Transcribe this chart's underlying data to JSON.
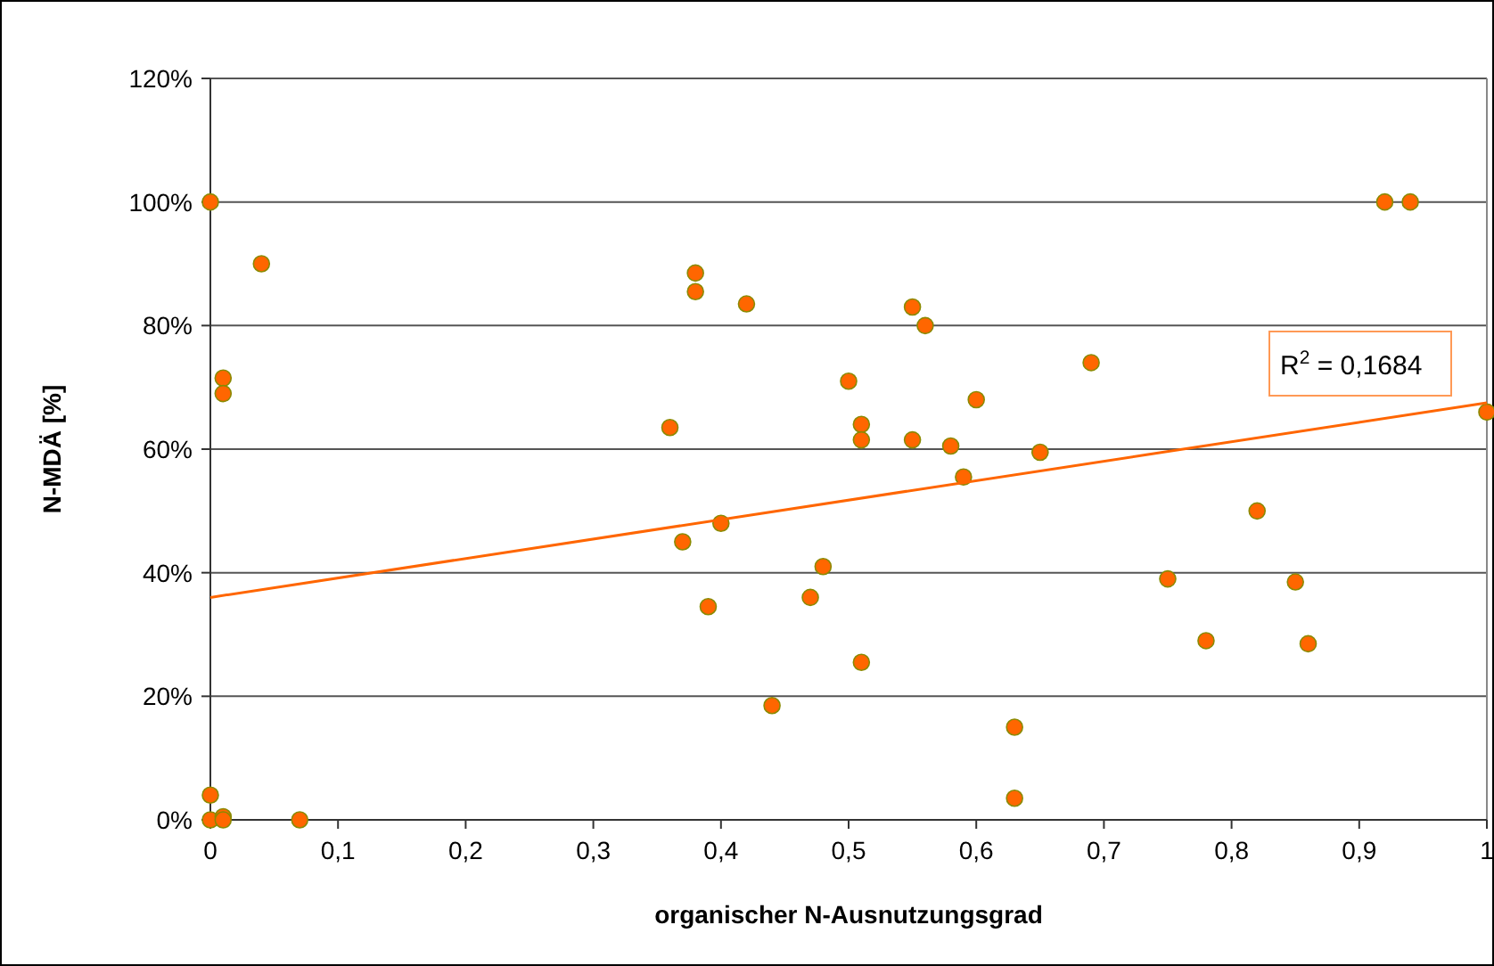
{
  "chart_data": {
    "type": "scatter",
    "xlabel": "organischer N-Ausnutzungsgrad",
    "ylabel": "N-MDÄ [%]",
    "xlim": [
      0,
      1
    ],
    "ylim": [
      0,
      120
    ],
    "xticks": [
      0,
      {
        "value": 0.1,
        "label": "0,1"
      },
      {
        "value": 0.2,
        "label": "0,2"
      },
      {
        "value": 0.3,
        "label": "0,3"
      },
      {
        "value": 0.4,
        "label": "0,4"
      },
      {
        "value": 0.5,
        "label": "0,5"
      },
      {
        "value": 0.6,
        "label": "0,6"
      },
      {
        "value": 0.7,
        "label": "0,7"
      },
      {
        "value": 0.8,
        "label": "0,8"
      },
      {
        "value": 0.9,
        "label": "0,9"
      },
      1
    ],
    "yticks": [
      {
        "value": 0,
        "label": "0%"
      },
      {
        "value": 20,
        "label": "20%"
      },
      {
        "value": 40,
        "label": "40%"
      },
      {
        "value": 60,
        "label": "60%"
      },
      {
        "value": 80,
        "label": "80%"
      },
      {
        "value": 100,
        "label": "100%"
      },
      {
        "value": 120,
        "label": "120%"
      }
    ],
    "grid": "y",
    "series": [
      {
        "marker": "circle",
        "color": "#ff6600",
        "x": [
          0,
          0,
          0,
          0.01,
          0.01,
          0.01,
          0.01,
          0.04,
          0.07,
          0.36,
          0.37,
          0.38,
          0.38,
          0.39,
          0.4,
          0.42,
          0.44,
          0.47,
          0.48,
          0.5,
          0.51,
          0.51,
          0.51,
          0.55,
          0.55,
          0.56,
          0.58,
          0.59,
          0.6,
          0.63,
          0.63,
          0.65,
          0.69,
          0.75,
          0.78,
          0.82,
          0.85,
          0.86,
          0.92,
          0.94,
          1
        ],
        "values": [
          100,
          4,
          0,
          0.5,
          0,
          71.5,
          69,
          90,
          0,
          63.5,
          45,
          88.5,
          85.5,
          34.5,
          48,
          83.5,
          18.5,
          36,
          41,
          71,
          64,
          61.5,
          25.5,
          83,
          61.5,
          80,
          60.5,
          55.5,
          68,
          15,
          3.5,
          59.5,
          74,
          39,
          29,
          50,
          38.5,
          28.5,
          100,
          100,
          66
        ]
      },
      {
        "type": "line",
        "color": "#ff6600",
        "x": [
          0,
          1
        ],
        "values": [
          36,
          67.5
        ]
      }
    ],
    "annotations": [
      "R$^{2}$ = 0,1684"
    ]
  }
}
